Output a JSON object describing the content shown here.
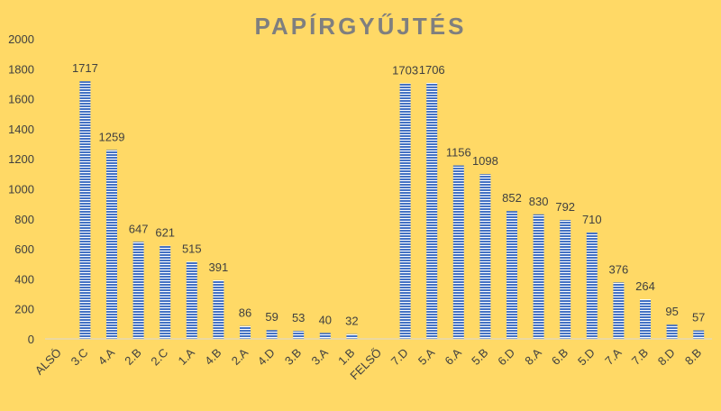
{
  "chart_data": {
    "type": "bar",
    "title": "PAPÍRGYŰJTÉS",
    "xlabel": "",
    "ylabel": "",
    "ylim": [
      0,
      2000
    ],
    "yticks": [
      0,
      200,
      400,
      600,
      800,
      1000,
      1200,
      1400,
      1600,
      1800,
      2000
    ],
    "grid": false,
    "legend": "none",
    "colors": {
      "bar": "#4472c4",
      "background": "#ffd966",
      "text": "#404040",
      "title": "#7f7f7f"
    },
    "categories": [
      "ALSÓ",
      "3.C",
      "4.A",
      "2.B",
      "2.C",
      "1.A",
      "4.B",
      "2.A",
      "4.D",
      "3.B",
      "3.A",
      "1.B",
      "FELSŐ",
      "7.D",
      "5.A",
      "6.A",
      "5.B",
      "6.D",
      "8.A",
      "6.B",
      "5.D",
      "7.A",
      "7.B",
      "8.D",
      "8.B"
    ],
    "values": [
      null,
      1717,
      1259,
      647,
      621,
      515,
      391,
      86,
      59,
      53,
      40,
      32,
      null,
      1703,
      1706,
      1156,
      1098,
      852,
      830,
      792,
      710,
      376,
      264,
      95,
      57
    ]
  }
}
